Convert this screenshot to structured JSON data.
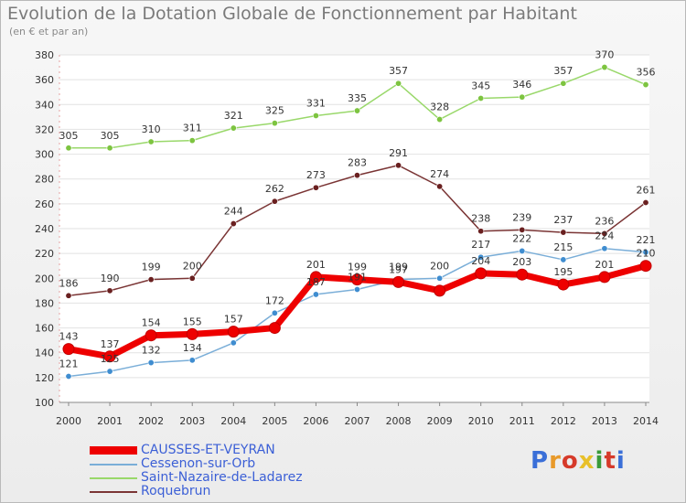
{
  "title": "Evolution de la Dotation Globale de Fonctionnement par Habitant",
  "subtitle": "(en € et par an)",
  "logo": {
    "text": "Proxiti",
    "colors": [
      "#3a6fd8",
      "#e89a2a",
      "#d63a2a",
      "#e8c02a",
      "#3a9a3a",
      "#d63a2a",
      "#3a6fd8"
    ]
  },
  "chart_data": {
    "type": "line",
    "title": "Evolution de la Dotation Globale de Fonctionnement par Habitant",
    "subtitle": "(en € et par an)",
    "x": [
      "2000",
      "2001",
      "2002",
      "2003",
      "2004",
      "2005",
      "2006",
      "2007",
      "2008",
      "2009",
      "2010",
      "2011",
      "2012",
      "2013",
      "2014"
    ],
    "ylim": [
      100,
      380
    ],
    "yticks": [
      100,
      120,
      140,
      160,
      180,
      200,
      220,
      240,
      260,
      280,
      300,
      320,
      340,
      360,
      380
    ],
    "grid": "horizontal",
    "legend_position": "bottom-left",
    "series": [
      {
        "name": "CAUSSES-ET-VEYRAN",
        "color": "#ee0000",
        "marker_color": "#ee0000",
        "width": "thick",
        "values": [
          143,
          137,
          154,
          155,
          157,
          160,
          201,
          199,
          197,
          190,
          204,
          203,
          195,
          201,
          210
        ],
        "labels": [
          "143",
          "137",
          "154",
          "155",
          "157",
          "",
          "201",
          "199",
          "197",
          "",
          "204",
          "203",
          "195",
          "201",
          "210"
        ]
      },
      {
        "name": "Cessenon-sur-Orb",
        "color": "#7aaed8",
        "marker_color": "#3f8dd0",
        "width": "thin",
        "values": [
          121,
          125,
          132,
          134,
          148,
          172,
          187,
          191,
          199,
          200,
          217,
          222,
          215,
          224,
          221
        ],
        "labels": [
          "121",
          "125",
          "132",
          "134",
          "",
          "172",
          "187",
          "191",
          "199",
          "200",
          "217",
          "222",
          "215",
          "224",
          "221"
        ]
      },
      {
        "name": "Saint-Nazaire-de-Ladarez",
        "color": "#99d86a",
        "marker_color": "#7dc440",
        "width": "thin",
        "values": [
          305,
          305,
          310,
          311,
          321,
          325,
          331,
          335,
          357,
          328,
          345,
          346,
          357,
          370,
          356
        ],
        "labels": [
          "305",
          "305",
          "310",
          "311",
          "321",
          "325",
          "331",
          "335",
          "357",
          "328",
          "345",
          "346",
          "357",
          "370",
          "356"
        ]
      },
      {
        "name": "Roquebrun",
        "color": "#7a3434",
        "marker_color": "#6a2020",
        "width": "thin",
        "values": [
          186,
          190,
          199,
          200,
          244,
          262,
          273,
          283,
          291,
          274,
          238,
          239,
          237,
          236,
          261
        ],
        "labels": [
          "186",
          "190",
          "199",
          "200",
          "244",
          "262",
          "273",
          "283",
          "291",
          "274",
          "238",
          "239",
          "237",
          "236",
          "261"
        ]
      }
    ]
  }
}
